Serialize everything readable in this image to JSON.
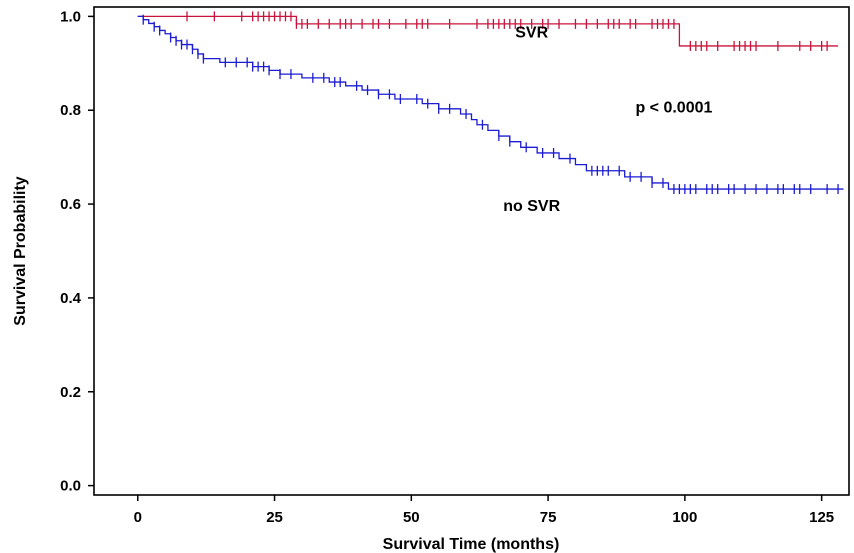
{
  "chart_data": {
    "type": "line",
    "subtype": "kaplan-meier",
    "xlabel": "Survival Time (months)",
    "ylabel": "Survival Probability",
    "xlim": [
      -8,
      130
    ],
    "ylim": [
      -0.02,
      1.02
    ],
    "xticks": [
      0,
      25,
      50,
      75,
      100,
      125
    ],
    "yticks": [
      0.0,
      0.2,
      0.4,
      0.6,
      0.8,
      1.0
    ],
    "xtick_labels": [
      "0",
      "25",
      "50",
      "75",
      "100",
      "125"
    ],
    "ytick_labels": [
      "0.0",
      "0.2",
      "0.4",
      "0.6",
      "0.8",
      "1.0"
    ],
    "grid": false,
    "series": [
      {
        "name": "SVR",
        "color": "#c8143c",
        "steps": [
          [
            0,
            1.0
          ],
          [
            29,
            0.984
          ],
          [
            99,
            0.937
          ],
          [
            128,
            0.937
          ]
        ],
        "censored_x": [
          9,
          14,
          19,
          21,
          22,
          23,
          24,
          25,
          26,
          27,
          28,
          29,
          30,
          31,
          33,
          35,
          37,
          38,
          39,
          41,
          43,
          44,
          46,
          49,
          51,
          52,
          53,
          57,
          62,
          64,
          65,
          66,
          67,
          68,
          69,
          70,
          72,
          74,
          75,
          77,
          80,
          82,
          84,
          86,
          87,
          88,
          90,
          91,
          94,
          95,
          96,
          97,
          98,
          101,
          102,
          103,
          104,
          106,
          109,
          110,
          111,
          112,
          113,
          117,
          121,
          123,
          125,
          126
        ]
      },
      {
        "name": "no SVR",
        "color": "#1c1cd2",
        "steps": [
          [
            0,
            1.0
          ],
          [
            1,
            0.993
          ],
          [
            2,
            0.985
          ],
          [
            3,
            0.978
          ],
          [
            4,
            0.97
          ],
          [
            5,
            0.963
          ],
          [
            6,
            0.955
          ],
          [
            7,
            0.948
          ],
          [
            8,
            0.94
          ],
          [
            10,
            0.93
          ],
          [
            11,
            0.92
          ],
          [
            12,
            0.91
          ],
          [
            15,
            0.902
          ],
          [
            21,
            0.893
          ],
          [
            24,
            0.885
          ],
          [
            26,
            0.877
          ],
          [
            30,
            0.869
          ],
          [
            35,
            0.86
          ],
          [
            38,
            0.852
          ],
          [
            41,
            0.843
          ],
          [
            44,
            0.834
          ],
          [
            47,
            0.824
          ],
          [
            52,
            0.814
          ],
          [
            55,
            0.803
          ],
          [
            59,
            0.792
          ],
          [
            61,
            0.78
          ],
          [
            62,
            0.769
          ],
          [
            64,
            0.757
          ],
          [
            66,
            0.745
          ],
          [
            68,
            0.733
          ],
          [
            70,
            0.721
          ],
          [
            73,
            0.709
          ],
          [
            77,
            0.697
          ],
          [
            80,
            0.684
          ],
          [
            82,
            0.671
          ],
          [
            89,
            0.658
          ],
          [
            94,
            0.645
          ],
          [
            97,
            0.632
          ],
          [
            129,
            0.632
          ]
        ],
        "censored_x": [
          1,
          3,
          4,
          6,
          7,
          8,
          9,
          10,
          11,
          12,
          16,
          18,
          20,
          21,
          22,
          23,
          24,
          26,
          28,
          32,
          34,
          36,
          37,
          40,
          42,
          44,
          46,
          48,
          51,
          53,
          55,
          57,
          60,
          63,
          66,
          68,
          71,
          74,
          76,
          79,
          83,
          84,
          85,
          86,
          88,
          90,
          92,
          94,
          96,
          98,
          99,
          100,
          101,
          102,
          104,
          105,
          106,
          108,
          109,
          111,
          113,
          115,
          117,
          118,
          120,
          121,
          123,
          126,
          128
        ]
      }
    ],
    "annotations": [
      {
        "text": "SVR",
        "x": 72,
        "y": 0.955
      },
      {
        "text": "p < 0.0001",
        "x": 98,
        "y": 0.795
      },
      {
        "text": "no SVR",
        "x": 72,
        "y": 0.585
      }
    ]
  }
}
